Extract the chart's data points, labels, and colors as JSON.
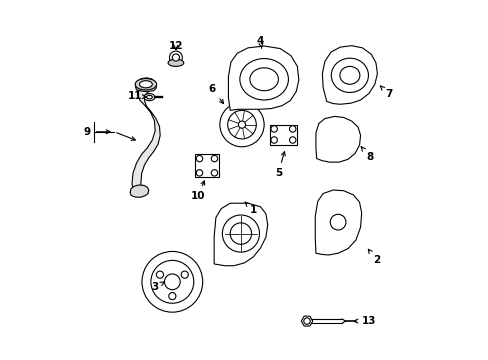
{
  "bg_color": "#ffffff",
  "line_color": "#000000",
  "fig_width": 4.89,
  "fig_height": 3.6,
  "dpi": 100,
  "parts_info": [
    [
      1,
      0.525,
      0.415,
      0.5,
      0.44
    ],
    [
      2,
      0.87,
      0.275,
      0.84,
      0.315
    ],
    [
      3,
      0.25,
      0.2,
      0.285,
      0.22
    ],
    [
      4,
      0.545,
      0.89,
      0.548,
      0.868
    ],
    [
      5,
      0.595,
      0.52,
      0.615,
      0.59
    ],
    [
      6,
      0.41,
      0.755,
      0.448,
      0.705
    ],
    [
      7,
      0.905,
      0.74,
      0.878,
      0.765
    ],
    [
      8,
      0.85,
      0.565,
      0.825,
      0.595
    ],
    [
      9,
      0.06,
      0.635,
      0.135,
      0.635
    ],
    [
      10,
      0.37,
      0.455,
      0.392,
      0.508
    ],
    [
      11,
      0.195,
      0.735,
      0.228,
      0.732
    ],
    [
      12,
      0.308,
      0.875,
      0.308,
      0.855
    ],
    [
      13,
      0.85,
      0.105,
      0.795,
      0.105
    ]
  ]
}
